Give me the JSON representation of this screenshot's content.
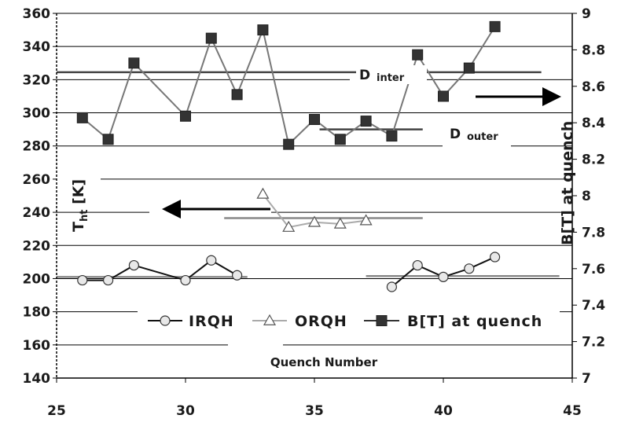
{
  "chart_data": {
    "type": "line",
    "title": "",
    "xlabel": "Quench Number",
    "ylabel_left_main": "T",
    "ylabel_left_sub": "ht",
    "ylabel_left_unit": " [K]",
    "ylabel_right": "B[T] at quench",
    "xlim": [
      25,
      45
    ],
    "ylim_left": [
      140,
      360
    ],
    "ylim_right": [
      7,
      9
    ],
    "x_ticks": [
      25,
      30,
      35,
      40,
      45
    ],
    "y_left_ticks": [
      140,
      160,
      180,
      200,
      220,
      240,
      260,
      280,
      300,
      320,
      340,
      360
    ],
    "y_right_ticks": [
      "7",
      "7.2",
      "7.4",
      "7.6",
      "7.8",
      "8",
      "8.2",
      "8.4",
      "8.6",
      "8.8",
      "9"
    ],
    "grid": "horizontal",
    "legend_position": "lower-center",
    "series": [
      {
        "name": "IRQH",
        "axis": "left",
        "marker": "circle",
        "color": "#111111",
        "segments": [
          [
            [
              26,
              199
            ],
            [
              27,
              199
            ],
            [
              28,
              208
            ],
            [
              30,
              199
            ],
            [
              31,
              211
            ],
            [
              32,
              202
            ]
          ],
          [
            [
              38,
              195
            ],
            [
              39,
              208
            ],
            [
              40,
              201
            ],
            [
              41,
              206
            ],
            [
              42,
              213
            ]
          ]
        ]
      },
      {
        "name": "ORQH",
        "axis": "left",
        "marker": "triangle",
        "color": "#9a9a9a",
        "segments": [
          [
            [
              33,
              251
            ],
            [
              34,
              231
            ],
            [
              35,
              234
            ],
            [
              36,
              233
            ],
            [
              37,
              235
            ]
          ]
        ]
      },
      {
        "name": "B[T] at quench",
        "axis": "left",
        "marker": "square",
        "color": "#777777",
        "segments": [
          [
            [
              26,
              297
            ],
            [
              27,
              284
            ],
            [
              28,
              330
            ],
            [
              30,
              298
            ],
            [
              31,
              345
            ],
            [
              32,
              311
            ],
            [
              33,
              350
            ],
            [
              34,
              281
            ],
            [
              35,
              296
            ],
            [
              36,
              284
            ],
            [
              37,
              295
            ],
            [
              38,
              286
            ],
            [
              39,
              335
            ],
            [
              40,
              310
            ],
            [
              41,
              327
            ],
            [
              42,
              352
            ]
          ]
        ]
      }
    ],
    "reference_lines": [
      {
        "kind": "inter-left",
        "x": [
          25,
          37.1
        ],
        "y": 324.5,
        "color": "#444444"
      },
      {
        "kind": "inter-right",
        "x": [
          38.8,
          43.8
        ],
        "y": 324.5,
        "color": "#444444"
      },
      {
        "kind": "outer",
        "x": [
          35.2,
          39.2
        ],
        "y": 290,
        "color": "#444444"
      },
      {
        "kind": "orqh-mean",
        "x": [
          31.5,
          39.2
        ],
        "y": 236.5,
        "color": "#888888"
      },
      {
        "kind": "irqh-mean-left",
        "x": [
          25,
          32.4
        ],
        "y": 201,
        "color": "#888888"
      },
      {
        "kind": "irqh-mean-right",
        "x": [
          37,
          44.5
        ],
        "y": 201.5,
        "color": "#888888"
      }
    ],
    "annotations": [
      {
        "main": "D",
        "sub": "inter"
      },
      {
        "main": "D",
        "sub": "outer"
      }
    ],
    "arrows": [
      {
        "direction": "left",
        "points_to": "left-axis"
      },
      {
        "direction": "right",
        "points_to": "right-axis"
      }
    ]
  }
}
